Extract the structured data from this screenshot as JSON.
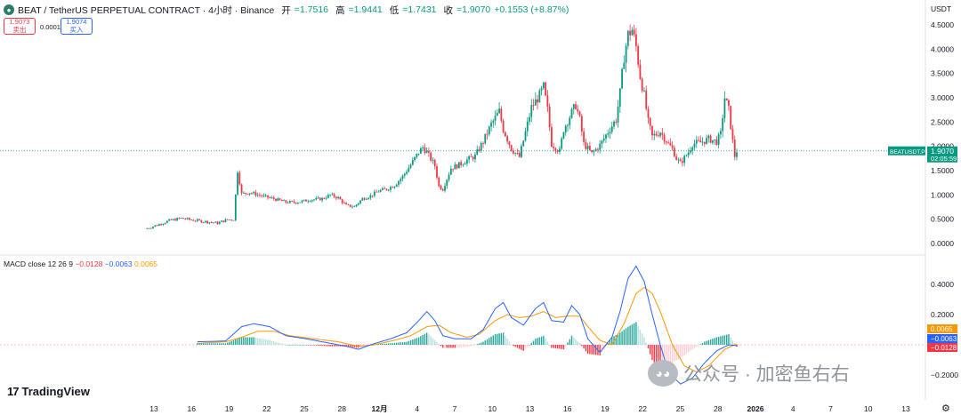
{
  "header": {
    "symbol": "BEAT / TetherUS PERPETUAL CONTRACT · 4小时 · Binance",
    "open_label": "开",
    "open": "=1.7516",
    "high_label": "高",
    "high": "=1.9441",
    "low_label": "低",
    "low": "=1.7431",
    "close_label": "收",
    "close": "=1.9070",
    "change": "+0.1553 (+8.87%)"
  },
  "quote": {
    "sell_price": "1.9073",
    "sell_label": "卖出",
    "spread": "0.0001",
    "buy_price": "1.9074",
    "buy_label": "买入"
  },
  "currency": "USDT",
  "macd_legend": {
    "label": "MACD close 12 26 9",
    "hist": "−0.0128",
    "macd": "−0.0063",
    "signal": "0.0065"
  },
  "colors": {
    "up": "#089981",
    "down": "#f23645",
    "macd_line": "#2962ff",
    "signal_line": "#ff9800",
    "last_price": "#089981"
  },
  "brand": "TradingView",
  "watermark": "公众号 · 加密鱼右右",
  "chart_data": [
    {
      "type": "candlestick",
      "title": "BEAT / TetherUS PERPETUAL CONTRACT · 4小时 · Binance",
      "y_axis_ticks": [
        "0.0000",
        "0.5000",
        "1.0000",
        "1.5000",
        "2.0000",
        "2.5000",
        "3.0000",
        "3.5000",
        "4.0000",
        "4.5000"
      ],
      "ylim": [
        -0.05,
        4.6
      ],
      "x_axis_ticks": [
        "13",
        "16",
        "19",
        "22",
        "25",
        "28",
        "12月",
        "4",
        "7",
        "10",
        "13",
        "16",
        "19",
        "22",
        "25",
        "28",
        "2026",
        "4",
        "7",
        "10",
        "13"
      ],
      "last_price_label": "BEATUSDT.P",
      "last_price": "1.9070",
      "countdown": "02:05:59",
      "close_path": [
        [
          0,
          0.3
        ],
        [
          6,
          0.38
        ],
        [
          12,
          0.47
        ],
        [
          18,
          0.52
        ],
        [
          24,
          0.48
        ],
        [
          30,
          0.45
        ],
        [
          36,
          0.42
        ],
        [
          40,
          0.48
        ],
        [
          44,
          0.5
        ],
        [
          46,
          1.5
        ],
        [
          48,
          1.02
        ],
        [
          52,
          1.05
        ],
        [
          58,
          0.98
        ],
        [
          64,
          0.92
        ],
        [
          70,
          0.85
        ],
        [
          76,
          0.85
        ],
        [
          82,
          0.9
        ],
        [
          88,
          0.92
        ],
        [
          92,
          1.0
        ],
        [
          96,
          0.94
        ],
        [
          100,
          0.78
        ],
        [
          104,
          0.76
        ],
        [
          108,
          0.92
        ],
        [
          112,
          0.98
        ],
        [
          116,
          1.08
        ],
        [
          120,
          1.12
        ],
        [
          124,
          1.2
        ],
        [
          128,
          1.38
        ],
        [
          132,
          1.62
        ],
        [
          136,
          1.88
        ],
        [
          138,
          1.98
        ],
        [
          140,
          1.88
        ],
        [
          144,
          1.6
        ],
        [
          146,
          1.18
        ],
        [
          148,
          1.12
        ],
        [
          152,
          1.55
        ],
        [
          156,
          1.62
        ],
        [
          160,
          1.72
        ],
        [
          164,
          1.8
        ],
        [
          168,
          2.1
        ],
        [
          172,
          2.45
        ],
        [
          176,
          2.72
        ],
        [
          178,
          2.35
        ],
        [
          182,
          1.95
        ],
        [
          186,
          1.78
        ],
        [
          188,
          2.12
        ],
        [
          192,
          2.8
        ],
        [
          196,
          3.05
        ],
        [
          198,
          3.22
        ],
        [
          200,
          2.75
        ],
        [
          202,
          2.05
        ],
        [
          206,
          1.9
        ],
        [
          208,
          2.35
        ],
        [
          212,
          2.7
        ],
        [
          214,
          2.85
        ],
        [
          216,
          2.55
        ],
        [
          218,
          2.05
        ],
        [
          222,
          1.85
        ],
        [
          226,
          2.02
        ],
        [
          230,
          2.3
        ],
        [
          234,
          2.55
        ],
        [
          236,
          3.1
        ],
        [
          238,
          3.85
        ],
        [
          240,
          4.3
        ],
        [
          242,
          4.4
        ],
        [
          244,
          4.05
        ],
        [
          246,
          3.45
        ],
        [
          248,
          3.05
        ],
        [
          250,
          2.5
        ],
        [
          252,
          2.2
        ],
        [
          256,
          2.3
        ],
        [
          260,
          2.05
        ],
        [
          262,
          1.95
        ],
        [
          264,
          1.75
        ],
        [
          266,
          1.65
        ],
        [
          270,
          1.88
        ],
        [
          272,
          2.05
        ],
        [
          276,
          2.08
        ],
        [
          280,
          2.15
        ],
        [
          284,
          2.1
        ],
        [
          286,
          2.25
        ],
        [
          288,
          3.0
        ],
        [
          290,
          2.75
        ],
        [
          292,
          2.1
        ],
        [
          293,
          1.8
        ],
        [
          294,
          1.91
        ]
      ]
    },
    {
      "type": "line",
      "title": "MACD close 12 26 9",
      "y_axis_ticks": [
        "0.4000",
        "0.2000",
        "−0.2000"
      ],
      "ylim": [
        -0.3,
        0.52
      ],
      "series": [
        {
          "name": "MACD",
          "values": [
            [
              26,
              0.02
            ],
            [
              40,
              0.025
            ],
            [
              48,
              0.12
            ],
            [
              54,
              0.14
            ],
            [
              62,
              0.12
            ],
            [
              70,
              0.06
            ],
            [
              80,
              0.04
            ],
            [
              92,
              0.01
            ],
            [
              100,
              -0.01
            ],
            [
              106,
              -0.03
            ],
            [
              112,
              0.0
            ],
            [
              122,
              0.04
            ],
            [
              130,
              0.08
            ],
            [
              136,
              0.16
            ],
            [
              140,
              0.22
            ],
            [
              144,
              0.16
            ],
            [
              148,
              0.06
            ],
            [
              154,
              0.04
            ],
            [
              162,
              0.04
            ],
            [
              168,
              0.1
            ],
            [
              174,
              0.24
            ],
            [
              178,
              0.28
            ],
            [
              182,
              0.18
            ],
            [
              188,
              0.13
            ],
            [
              194,
              0.24
            ],
            [
              198,
              0.28
            ],
            [
              202,
              0.16
            ],
            [
              208,
              0.15
            ],
            [
              212,
              0.26
            ],
            [
              216,
              0.2
            ],
            [
              220,
              0.04
            ],
            [
              226,
              -0.05
            ],
            [
              232,
              0.05
            ],
            [
              236,
              0.22
            ],
            [
              240,
              0.44
            ],
            [
              244,
              0.52
            ],
            [
              248,
              0.42
            ],
            [
              252,
              0.2
            ],
            [
              256,
              0.0
            ],
            [
              260,
              -0.18
            ],
            [
              266,
              -0.26
            ],
            [
              272,
              -0.22
            ],
            [
              278,
              -0.12
            ],
            [
              284,
              -0.04
            ],
            [
              290,
              0.0
            ],
            [
              294,
              -0.0063
            ]
          ]
        },
        {
          "name": "Signal",
          "values": [
            [
              26,
              0.01
            ],
            [
              40,
              0.02
            ],
            [
              48,
              0.05
            ],
            [
              56,
              0.09
            ],
            [
              64,
              0.09
            ],
            [
              72,
              0.06
            ],
            [
              84,
              0.04
            ],
            [
              96,
              0.02
            ],
            [
              106,
              -0.01
            ],
            [
              114,
              0.0
            ],
            [
              124,
              0.03
            ],
            [
              132,
              0.06
            ],
            [
              140,
              0.12
            ],
            [
              146,
              0.13
            ],
            [
              152,
              0.08
            ],
            [
              160,
              0.05
            ],
            [
              166,
              0.07
            ],
            [
              174,
              0.16
            ],
            [
              180,
              0.2
            ],
            [
              186,
              0.18
            ],
            [
              192,
              0.19
            ],
            [
              198,
              0.22
            ],
            [
              204,
              0.18
            ],
            [
              210,
              0.19
            ],
            [
              216,
              0.19
            ],
            [
              220,
              0.12
            ],
            [
              226,
              0.03
            ],
            [
              232,
              0.0
            ],
            [
              238,
              0.14
            ],
            [
              244,
              0.34
            ],
            [
              248,
              0.38
            ],
            [
              252,
              0.34
            ],
            [
              256,
              0.22
            ],
            [
              262,
              0.0
            ],
            [
              268,
              -0.14
            ],
            [
              274,
              -0.18
            ],
            [
              280,
              -0.14
            ],
            [
              288,
              -0.03
            ],
            [
              294,
              0.0065
            ]
          ]
        },
        {
          "name": "Histogram",
          "values": [
            [
              26,
              0.01
            ],
            [
              40,
              0.01
            ],
            [
              48,
              0.05
            ],
            [
              54,
              0.05
            ],
            [
              62,
              0.03
            ],
            [
              70,
              0.0
            ],
            [
              80,
              0.0
            ],
            [
              92,
              -0.01
            ],
            [
              100,
              -0.01
            ],
            [
              106,
              -0.02
            ],
            [
              112,
              0.0
            ],
            [
              122,
              0.01
            ],
            [
              130,
              0.02
            ],
            [
              136,
              0.05
            ],
            [
              140,
              0.08
            ],
            [
              144,
              0.03
            ],
            [
              148,
              -0.02
            ],
            [
              154,
              -0.02
            ],
            [
              162,
              -0.01
            ],
            [
              168,
              0.02
            ],
            [
              174,
              0.07
            ],
            [
              178,
              0.08
            ],
            [
              182,
              0.0
            ],
            [
              188,
              -0.04
            ],
            [
              194,
              0.04
            ],
            [
              198,
              0.06
            ],
            [
              202,
              -0.02
            ],
            [
              208,
              -0.03
            ],
            [
              212,
              0.06
            ],
            [
              216,
              0.01
            ],
            [
              220,
              -0.06
            ],
            [
              226,
              -0.07
            ],
            [
              232,
              0.05
            ],
            [
              236,
              0.08
            ],
            [
              240,
              0.12
            ],
            [
              244,
              0.15
            ],
            [
              248,
              0.05
            ],
            [
              252,
              -0.1
            ],
            [
              256,
              -0.16
            ],
            [
              260,
              -0.13
            ],
            [
              266,
              -0.09
            ],
            [
              272,
              -0.03
            ],
            [
              278,
              0.02
            ],
            [
              284,
              0.05
            ],
            [
              290,
              0.07
            ],
            [
              294,
              -0.0128
            ]
          ]
        }
      ]
    }
  ]
}
